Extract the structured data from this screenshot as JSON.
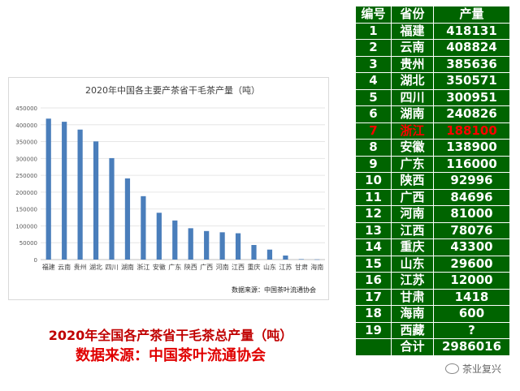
{
  "chart_data": {
    "type": "bar",
    "title": "2020年中国各主要产茶省干毛茶产量（吨）",
    "categories": [
      "福建",
      "云南",
      "贵州",
      "湖北",
      "四川",
      "湖南",
      "浙江",
      "安徽",
      "广东",
      "陕西",
      "广西",
      "河南",
      "江西",
      "重庆",
      "山东",
      "江苏",
      "甘肃",
      "海南"
    ],
    "values": [
      418131,
      408824,
      385636,
      350571,
      300951,
      240826,
      188100,
      138900,
      116000,
      92996,
      84696,
      81000,
      78076,
      43300,
      29600,
      12000,
      1418,
      600
    ],
    "ylim": [
      0,
      450000
    ],
    "yticks": [
      "0",
      "50000",
      "100000",
      "150000",
      "200000",
      "250000",
      "300000",
      "350000",
      "400000",
      "450000"
    ],
    "bar_color": "#4a7ebb",
    "grid": true
  },
  "chart_source": "数据来源：中国茶叶流通协会",
  "caption_line1": "2020年全国各产茶省干毛茶总产量（吨）",
  "caption_line2": "数据来源：中国茶叶流通协会",
  "table": {
    "headers": [
      "编号",
      "省份",
      "产量"
    ],
    "rows": [
      [
        "1",
        "福建",
        "418131"
      ],
      [
        "2",
        "云南",
        "408824"
      ],
      [
        "3",
        "贵州",
        "385636"
      ],
      [
        "4",
        "湖北",
        "350571"
      ],
      [
        "5",
        "四川",
        "300951"
      ],
      [
        "6",
        "湖南",
        "240826"
      ],
      [
        "7",
        "浙江",
        "188100"
      ],
      [
        "8",
        "安徽",
        "138900"
      ],
      [
        "9",
        "广东",
        "116000"
      ],
      [
        "10",
        "陕西",
        "92996"
      ],
      [
        "11",
        "广西",
        "84696"
      ],
      [
        "12",
        "河南",
        "81000"
      ],
      [
        "13",
        "江西",
        "78076"
      ],
      [
        "14",
        "重庆",
        "43300"
      ],
      [
        "15",
        "山东",
        "29600"
      ],
      [
        "16",
        "江苏",
        "12000"
      ],
      [
        "17",
        "甘肃",
        "1418"
      ],
      [
        "18",
        "海南",
        "600"
      ],
      [
        "19",
        "西藏",
        "?"
      ],
      [
        "",
        "合计",
        "2986016"
      ]
    ],
    "highlight_row": 6,
    "bg_color": "#006400",
    "highlight_color": "#ff0000"
  },
  "watermark": "茶业复兴"
}
